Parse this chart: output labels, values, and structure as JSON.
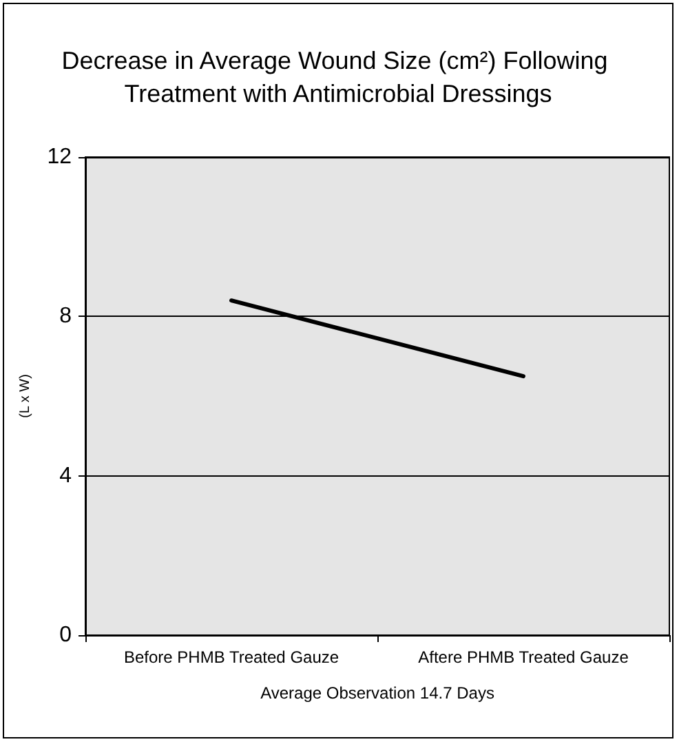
{
  "chart_data": {
    "type": "line",
    "title": "Decrease in Average Wound Size (cm²) Following Treatment with Antimicrobial Dressings",
    "xlabel": "Average Observation 14.7 Days",
    "ylabel": "(L x W)",
    "categories": [
      "Before PHMB Treated Gauze",
      "Aftere PHMB Treated Gauze"
    ],
    "series": [
      {
        "color": "#000000",
        "values": [
          8.4,
          6.5
        ]
      }
    ],
    "ylim": [
      0,
      12
    ],
    "yticks": [
      0,
      4,
      8,
      12
    ],
    "grid": "y",
    "marker": "none",
    "line_style": "solid"
  }
}
